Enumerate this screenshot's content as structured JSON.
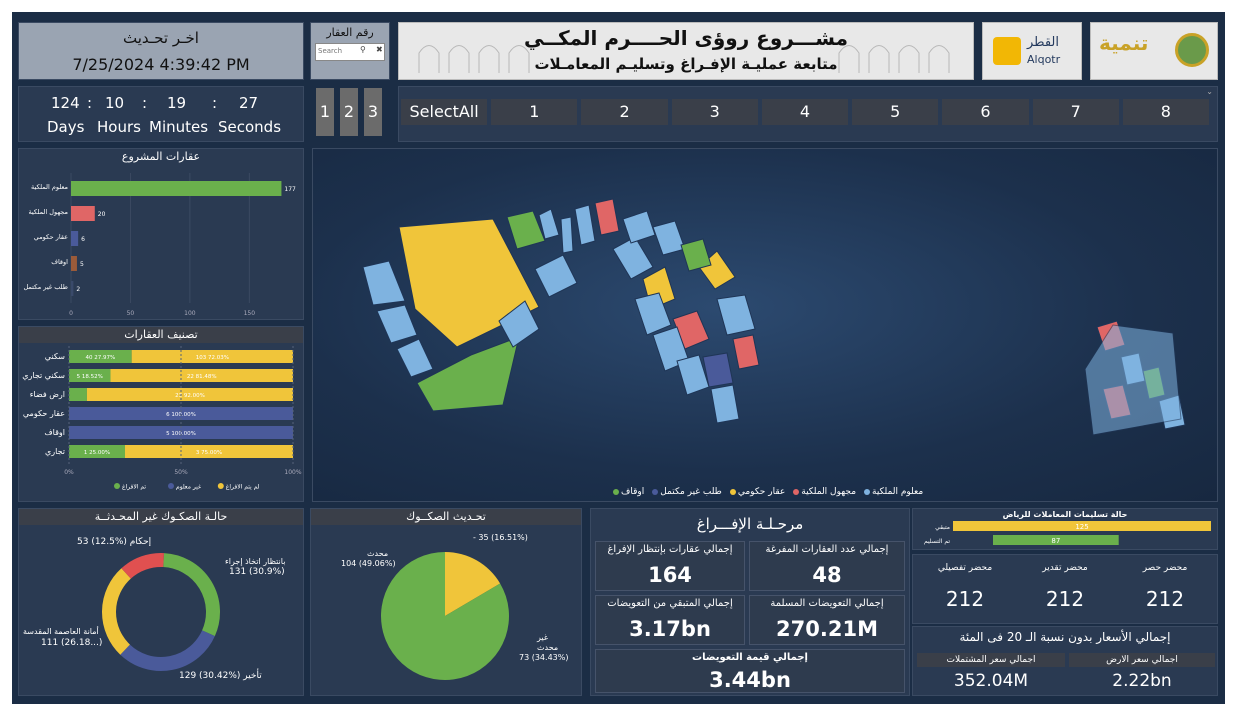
{
  "update": {
    "title": "اخـر تحـديث",
    "datetime": "7/25/2024 4:39:42 PM"
  },
  "search": {
    "title": "رقم العقار",
    "placeholder": "Search"
  },
  "header": {
    "title": "مشـــروع روؤى الحــــرم المكــي",
    "subtitle": "متابعة عمليـة الإفـراغ وتسليـم المعامـلات"
  },
  "logos": {
    "alqotr_ar": "القطر",
    "alqotr_en": "Alqotr",
    "tanmia": "تنمية"
  },
  "countdown": {
    "values": [
      "124",
      "10",
      "19",
      "27"
    ],
    "units": [
      "Days",
      "Hours",
      "Minutes",
      "Seconds"
    ]
  },
  "pages": [
    "1",
    "2",
    "3"
  ],
  "slicer": [
    "SelectAll",
    "1",
    "2",
    "3",
    "4",
    "5",
    "6",
    "7",
    "8"
  ],
  "project_props": {
    "title": "عقارات المشروع",
    "chart_data": {
      "type": "bar",
      "categories": [
        "معلوم الملكية",
        "مجهول الملكية",
        "عقار حكومي",
        "اوقاف",
        "طلب غير مكتمل"
      ],
      "values": [
        177,
        20,
        6,
        5,
        2
      ],
      "colors": [
        "#6ab04c",
        "#e06666",
        "#4a5a9a",
        "#9b5b3a",
        "#3a4a6a"
      ],
      "xticks": [
        "0",
        "50",
        "100",
        "150"
      ],
      "xlim": [
        0,
        180
      ]
    }
  },
  "classification": {
    "title": "تصنيف العقارات",
    "chart_data": {
      "type": "bar",
      "stacked": true,
      "categories": [
        "سكني",
        "سكني تجاري",
        "ارض فضاء",
        "عقار حكومي",
        "اوقاف",
        "تجاري"
      ],
      "series": [
        {
          "name": "تم الافراغ",
          "color": "#6ab04c",
          "values": [
            27.97,
            18.52,
            8,
            0,
            0,
            25
          ],
          "labels": [
            "40 27.97%",
            "5 18.52%",
            "",
            "",
            "",
            "1 25.00%"
          ]
        },
        {
          "name": "غير معلوم",
          "color": "#4a5a9a",
          "values": [
            0,
            0,
            0,
            100,
            100,
            0
          ],
          "labels": [
            "",
            "",
            "",
            "6 100.00%",
            "5 100.00%",
            ""
          ]
        },
        {
          "name": "لم يتم الافراغ",
          "color": "#f0c53a",
          "values": [
            72.03,
            81.48,
            92,
            0,
            0,
            75
          ],
          "labels": [
            "103 72.03%",
            "22 81.48%",
            "23 92.00%",
            "",
            "",
            "3 75.00%"
          ]
        }
      ],
      "xticks": [
        "0%",
        "50%",
        "100%"
      ]
    }
  },
  "map": {
    "legend": [
      "معلوم الملكية",
      "مجهول الملكية",
      "عقار حكومي",
      "طلب غير مكتمل",
      "اوقاف"
    ],
    "colors": [
      "#7fb3e0",
      "#e06666",
      "#f0c53a",
      "#4a5a9a",
      "#6ab04c"
    ]
  },
  "deeds_status": {
    "title": "حالـة الصكـوك غير المحـدثــة",
    "chart_data": {
      "type": "pie",
      "donut": true,
      "slices": [
        {
          "label": "بانتظار اتخاذ إجراء",
          "value": 131,
          "pct": "30.9%",
          "color": "#6ab04c"
        },
        {
          "label": "تأخير",
          "value": 129,
          "pct": "30.42%",
          "color": "#4a5a9a"
        },
        {
          "label": "أمانة العاصمة المقدسة",
          "value": 111,
          "pct": "26.18...",
          "color": "#f0c53a"
        },
        {
          "label": "إحكام",
          "value": 53,
          "pct": "12.5%",
          "color": "#e05050"
        }
      ]
    },
    "label_texts": [
      "53 (12.5%) إحكام",
      "بانتظار اتخاذ إجراء",
      "131 (30.9%)",
      "أمانة العاصمة المقدسة",
      "111 (26.18...)",
      "129 (30.42%) تأخير"
    ]
  },
  "deeds_update": {
    "title": "تحـديث الصكــوك",
    "chart_data": {
      "type": "pie",
      "slices": [
        {
          "label": "محدث",
          "value": 104,
          "pct": "49.06%",
          "color": "#6ab04c"
        },
        {
          "label": "غير محدث",
          "value": 73,
          "pct": "34.43%",
          "color": "#6ab04c"
        },
        {
          "label": "-",
          "value": 35,
          "pct": "16.51%",
          "color": "#f0c53a"
        }
      ]
    },
    "label_texts": [
      "- 35 (16.51%)",
      "محدث",
      "104 (49.06%)",
      "غير",
      "محدث",
      "73 (34.43%)"
    ]
  },
  "evacuation": {
    "title": "مرحـلـة الإفـــراغ",
    "tiles": [
      {
        "label": "إجمالي عدد العقارات المفرغة",
        "value": "48"
      },
      {
        "label": "إجمالي عقارات بإنتظار الإفراغ",
        "value": "164"
      },
      {
        "label": "إجمالي التعويضات المسلمة",
        "value": "270.21M"
      },
      {
        "label": "إجمالي المتبقي من التعويضات",
        "value": "3.17bn"
      },
      {
        "label": "إجمالي قيمة التعويضات",
        "value": "3.44bn"
      }
    ]
  },
  "riyadh": {
    "title": "حالة تسليمات المعاملات للرياض",
    "chart_data": {
      "type": "bar",
      "categories": [
        "متبقي",
        "تم التسليم"
      ],
      "values": [
        125,
        87
      ],
      "colors": [
        "#f0c53a",
        "#6ab04c"
      ],
      "xlim": [
        0,
        125
      ]
    },
    "cards": [
      {
        "label": "محضر حصر",
        "value": "212"
      },
      {
        "label": "محضر تقدير",
        "value": "212"
      },
      {
        "label": "محضر تفصيلي",
        "value": "212"
      }
    ]
  },
  "prices": {
    "title": "إجمالي الأسعار بدون نسبة الـ 20 فى المئة",
    "cards": [
      {
        "label": "اجمالي سعر الارض",
        "value": "2.22bn"
      },
      {
        "label": "اجمالي سعر المشتملات",
        "value": "352.04M"
      }
    ]
  }
}
